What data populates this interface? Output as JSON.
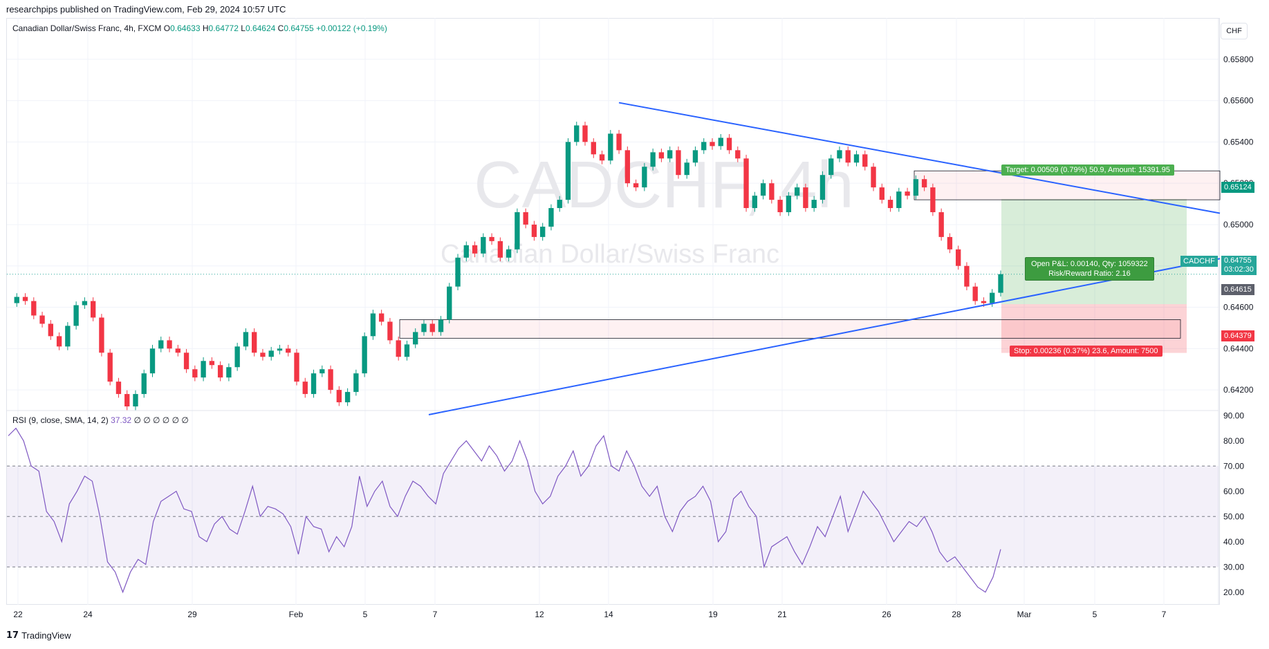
{
  "header": {
    "published": "researchpips published on TradingView.com, Feb 29, 2024 10:57 UTC"
  },
  "legend": {
    "symbol": "Canadian Dollar/Swiss Franc, 4h, FXCM",
    "open_label": "O",
    "open": "0.64633",
    "high_label": "H",
    "high": "0.64772",
    "low_label": "L",
    "low": "0.64624",
    "close_label": "C",
    "close": "0.64755",
    "change": "+0.00122 (+0.19%)"
  },
  "watermark": {
    "ticker": "CADCHF, 4h",
    "name": "Canadian Dollar/Swiss Franc"
  },
  "currency_button": "CHF",
  "rsi": {
    "label": "RSI (9, close, SMA, 14, 2)",
    "value": "37.32",
    "extras": "∅ ∅ ∅ ∅ ∅ ∅"
  },
  "position": {
    "target_text": "Target: 0.00509 (0.79%) 50.9, Amount: 15391.95",
    "stop_text": "Stop: 0.00236 (0.37%) 23.6, Amount: 7500",
    "pnl_line1": "Open P&L: 0.00140, Qty: 1059322",
    "pnl_line2": "Risk/Reward Ratio: 2.16"
  },
  "price_tags": {
    "target_price": "0.65124",
    "current_symbol": "CADCHF",
    "current_price": "0.64755",
    "countdown": "03:02:30",
    "entry_price": "0.64615",
    "stop_price": "0.64379"
  },
  "colors": {
    "up": "#089981",
    "down": "#f23645",
    "trend": "#2962ff",
    "rsi": "#7e57c2"
  },
  "footer": {
    "brand": "TradingView"
  },
  "chart_data": [
    {
      "type": "candlestick",
      "title": "Canadian Dollar/Swiss Franc, 4h, FXCM",
      "ylim": [
        0.641,
        0.66
      ],
      "y_ticks": [
        "0.65800",
        "0.65600",
        "0.65400",
        "0.65200",
        "0.65000",
        "0.64800",
        "0.64600",
        "0.64400",
        "0.64200"
      ],
      "x_ticks": [
        "22",
        "24",
        "29",
        "Feb",
        "5",
        "7",
        "12",
        "14",
        "19",
        "21",
        "26",
        "28",
        "Mar",
        "5",
        "7"
      ],
      "close_path": [
        0.6462,
        0.6465,
        0.6463,
        0.6456,
        0.6452,
        0.6446,
        0.6441,
        0.6451,
        0.6461,
        0.6463,
        0.6455,
        0.6438,
        0.6424,
        0.6418,
        0.6412,
        0.6418,
        0.6428,
        0.644,
        0.6444,
        0.644,
        0.6438,
        0.643,
        0.6426,
        0.6434,
        0.6432,
        0.6426,
        0.6431,
        0.6441,
        0.6448,
        0.6438,
        0.6436,
        0.6439,
        0.644,
        0.6438,
        0.6424,
        0.6418,
        0.6428,
        0.643,
        0.642,
        0.6414,
        0.6419,
        0.6428,
        0.6446,
        0.6457,
        0.6453,
        0.6444,
        0.6436,
        0.6442,
        0.6448,
        0.6452,
        0.6448,
        0.6454,
        0.647,
        0.6484,
        0.649,
        0.6486,
        0.6494,
        0.6492,
        0.6484,
        0.6488,
        0.6506,
        0.65,
        0.6494,
        0.6499,
        0.6508,
        0.6512,
        0.654,
        0.6548,
        0.654,
        0.6534,
        0.6531,
        0.6544,
        0.6536,
        0.652,
        0.6518,
        0.6528,
        0.6535,
        0.6532,
        0.6536,
        0.6524,
        0.653,
        0.6536,
        0.654,
        0.6538,
        0.6542,
        0.6536,
        0.6532,
        0.6508,
        0.6514,
        0.652,
        0.6512,
        0.6506,
        0.6514,
        0.6518,
        0.6508,
        0.6512,
        0.6524,
        0.6532,
        0.6536,
        0.653,
        0.6534,
        0.6528,
        0.6518,
        0.6512,
        0.6508,
        0.6516,
        0.6514,
        0.6522,
        0.6518,
        0.6506,
        0.6494,
        0.6488,
        0.648,
        0.647,
        0.6463,
        0.6462,
        0.6467,
        0.6476
      ],
      "trendlines": [
        {
          "name": "upper",
          "from": {
            "x": "Feb 14",
            "y": 0.6559
          },
          "to": {
            "x": "Mar 8",
            "y": 0.65055
          }
        },
        {
          "name": "lower",
          "from": {
            "x": "Feb 7",
            "y": 0.6408
          },
          "to": {
            "x": "Mar 8",
            "y": 0.64835
          }
        }
      ],
      "zones": [
        {
          "name": "support-zone",
          "from_x": "Feb 6",
          "to_x": "Mar 6",
          "top": 0.6454,
          "bottom": 0.6445
        },
        {
          "name": "resistance-zone",
          "from_x": "Feb 27",
          "to_x": "Mar 8",
          "top": 0.6526,
          "bottom": 0.6512
        }
      ],
      "position": {
        "entry": 0.64615,
        "target": 0.65124,
        "stop": 0.64379
      }
    },
    {
      "type": "line",
      "title": "RSI (9, close, SMA, 14, 2)",
      "ylim": [
        15,
        92
      ],
      "y_ticks": [
        "90.00",
        "80.00",
        "70.00",
        "60.00",
        "50.00",
        "40.00",
        "30.00",
        "20.00"
      ],
      "bands": {
        "upper": 70,
        "middle": 50,
        "lower": 30
      },
      "series": [
        {
          "values": [
            82,
            85,
            80,
            70,
            68,
            52,
            48,
            40,
            55,
            60,
            66,
            64,
            50,
            32,
            28,
            20,
            28,
            33,
            31,
            48,
            56,
            58,
            60,
            53,
            52,
            42,
            40,
            47,
            50,
            45,
            43,
            52,
            62,
            50,
            54,
            53,
            51,
            46,
            35,
            50,
            46,
            45,
            36,
            42,
            38,
            46,
            66,
            54,
            60,
            64,
            54,
            50,
            58,
            64,
            62,
            58,
            55,
            67,
            72,
            77,
            80,
            76,
            72,
            78,
            74,
            68,
            72,
            80,
            72,
            60,
            55,
            58,
            66,
            70,
            76,
            66,
            70,
            78,
            82,
            70,
            68,
            76,
            70,
            62,
            58,
            62,
            50,
            44,
            52,
            56,
            58,
            62,
            56,
            40,
            44,
            57,
            60,
            54,
            50,
            30,
            38,
            40,
            42,
            36,
            31,
            38,
            46,
            42,
            50,
            58,
            44,
            52,
            60,
            56,
            52,
            46,
            40,
            44,
            48,
            46,
            50,
            44,
            36,
            32,
            34,
            30,
            26,
            22,
            20,
            26,
            37
          ]
        }
      ]
    }
  ]
}
